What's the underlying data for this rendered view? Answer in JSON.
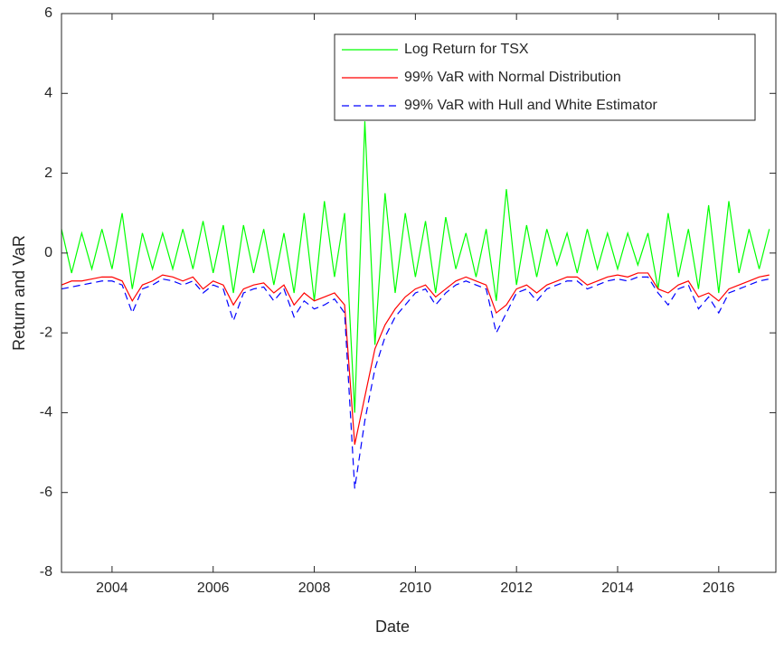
{
  "chart_data": {
    "type": "line",
    "x_label": "Date",
    "y_label": "Return and VaR",
    "x": [
      2003.0,
      2003.2,
      2003.4,
      2003.6,
      2003.8,
      2004.0,
      2004.2,
      2004.4,
      2004.6,
      2004.8,
      2005.0,
      2005.2,
      2005.4,
      2005.6,
      2005.8,
      2006.0,
      2006.2,
      2006.4,
      2006.6,
      2006.8,
      2007.0,
      2007.2,
      2007.4,
      2007.6,
      2007.8,
      2008.0,
      2008.2,
      2008.4,
      2008.6,
      2008.8,
      2009.0,
      2009.2,
      2009.4,
      2009.6,
      2009.8,
      2010.0,
      2010.2,
      2010.4,
      2010.6,
      2010.8,
      2011.0,
      2011.2,
      2011.4,
      2011.6,
      2011.8,
      2012.0,
      2012.2,
      2012.4,
      2012.6,
      2012.8,
      2013.0,
      2013.2,
      2013.4,
      2013.6,
      2013.8,
      2014.0,
      2014.2,
      2014.4,
      2014.6,
      2014.8,
      2015.0,
      2015.2,
      2015.4,
      2015.6,
      2015.8,
      2016.0,
      2016.2,
      2016.4,
      2016.6,
      2016.8,
      2017.0
    ],
    "series": [
      {
        "name": "Log Return for TSX",
        "color": "#00ff00",
        "dash": false,
        "values": [
          0.6,
          -0.5,
          0.5,
          -0.4,
          0.6,
          -0.4,
          1.0,
          -0.9,
          0.5,
          -0.4,
          0.5,
          -0.4,
          0.6,
          -0.4,
          0.8,
          -0.5,
          0.7,
          -1.0,
          0.7,
          -0.5,
          0.6,
          -0.8,
          0.5,
          -1.0,
          1.0,
          -1.2,
          1.3,
          -0.6,
          1.0,
          -4.0,
          3.3,
          -2.3,
          1.5,
          -1.0,
          1.0,
          -0.6,
          0.8,
          -1.0,
          0.9,
          -0.4,
          0.5,
          -0.6,
          0.6,
          -1.2,
          1.6,
          -0.8,
          0.7,
          -0.6,
          0.6,
          -0.3,
          0.5,
          -0.5,
          0.6,
          -0.4,
          0.5,
          -0.4,
          0.5,
          -0.3,
          0.5,
          -0.9,
          1.0,
          -0.6,
          0.6,
          -0.9,
          1.2,
          -1.0,
          1.3,
          -0.5,
          0.6,
          -0.4,
          0.6
        ]
      },
      {
        "name": "99% VaR with Normal Distribution",
        "color": "#ff0000",
        "dash": false,
        "values": [
          -0.8,
          -0.7,
          -0.7,
          -0.65,
          -0.6,
          -0.6,
          -0.7,
          -1.2,
          -0.8,
          -0.7,
          -0.55,
          -0.6,
          -0.7,
          -0.6,
          -0.9,
          -0.7,
          -0.8,
          -1.3,
          -0.9,
          -0.8,
          -0.75,
          -1.0,
          -0.8,
          -1.3,
          -1.0,
          -1.2,
          -1.1,
          -1.0,
          -1.3,
          -4.8,
          -3.6,
          -2.4,
          -1.8,
          -1.4,
          -1.1,
          -0.9,
          -0.8,
          -1.1,
          -0.9,
          -0.7,
          -0.6,
          -0.7,
          -0.8,
          -1.5,
          -1.3,
          -0.9,
          -0.8,
          -1.0,
          -0.8,
          -0.7,
          -0.6,
          -0.6,
          -0.8,
          -0.7,
          -0.6,
          -0.55,
          -0.6,
          -0.5,
          -0.5,
          -0.9,
          -1.0,
          -0.8,
          -0.7,
          -1.1,
          -1.0,
          -1.2,
          -0.9,
          -0.8,
          -0.7,
          -0.6,
          -0.55
        ]
      },
      {
        "name": "99% VaR with Hull and White Estimator",
        "color": "#0000ff",
        "dash": true,
        "values": [
          -0.9,
          -0.85,
          -0.8,
          -0.75,
          -0.7,
          -0.7,
          -0.8,
          -1.5,
          -0.9,
          -0.8,
          -0.65,
          -0.7,
          -0.8,
          -0.7,
          -1.0,
          -0.8,
          -0.9,
          -1.7,
          -1.0,
          -0.9,
          -0.85,
          -1.2,
          -0.9,
          -1.6,
          -1.2,
          -1.4,
          -1.3,
          -1.15,
          -1.5,
          -5.9,
          -4.2,
          -2.9,
          -2.1,
          -1.6,
          -1.3,
          -1.0,
          -0.9,
          -1.3,
          -1.0,
          -0.8,
          -0.7,
          -0.8,
          -0.9,
          -2.0,
          -1.5,
          -1.0,
          -0.9,
          -1.2,
          -0.9,
          -0.8,
          -0.7,
          -0.7,
          -0.9,
          -0.8,
          -0.7,
          -0.65,
          -0.7,
          -0.6,
          -0.6,
          -1.0,
          -1.3,
          -0.9,
          -0.8,
          -1.4,
          -1.1,
          -1.5,
          -1.0,
          -0.9,
          -0.8,
          -0.7,
          -0.65
        ]
      }
    ],
    "xlim": [
      2003.0,
      2017.13
    ],
    "xticks": [
      2004,
      2006,
      2008,
      2010,
      2012,
      2014,
      2016
    ],
    "ylim": [
      -8,
      6
    ],
    "yticks": [
      -8,
      -6,
      -4,
      -2,
      0,
      2,
      4,
      6
    ],
    "grid": false,
    "legend": "upper-right"
  }
}
